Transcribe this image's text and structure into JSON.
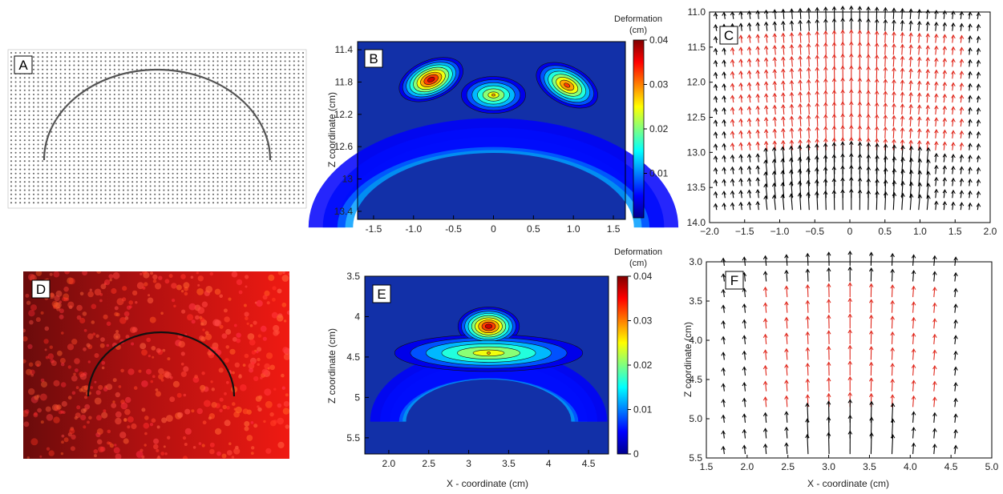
{
  "panels": {
    "A": {
      "label": "A"
    },
    "B": {
      "label": "B",
      "ylabel": "Z coordinate (cm)",
      "colorbar_title": "Deformation",
      "colorbar_units": "(cm)"
    },
    "C": {
      "label": "C"
    },
    "D": {
      "label": "D"
    },
    "E": {
      "label": "E",
      "ylabel": "Z coordinate (cm)",
      "xlabel": "X - coordinate (cm)",
      "colorbar_title": "Deformation",
      "colorbar_units": "(cm)"
    },
    "F": {
      "label": "F",
      "ylabel": "Z coordinate (cm)",
      "xlabel": "X - coordinate (cm)"
    }
  },
  "colors": {
    "contour_background": "#1230a8",
    "vector_black": "#000000",
    "vector_red": "#e0261b",
    "fluorescence_red": "#e01010"
  },
  "chart_data": [
    {
      "id": "B",
      "type": "heatmap",
      "xlim": [
        -1.7,
        1.65
      ],
      "ylim": [
        11.3,
        13.5
      ],
      "y_inverted": true,
      "xticks": [
        "-1.5",
        "-1.0",
        "-0.5",
        "0",
        "0.5",
        "1.0",
        "1.5"
      ],
      "xtick_values": [
        -1.5,
        -1.0,
        -0.5,
        0,
        0.5,
        1.0,
        1.5
      ],
      "yticks": [
        "11.4",
        "11.8",
        "12.2",
        "12.6",
        "13",
        "13.4"
      ],
      "ytick_values": [
        11.4,
        11.8,
        12.2,
        12.6,
        13.0,
        13.4
      ],
      "colorbar": {
        "min": 0,
        "max": 0.04,
        "ticks": [
          "0.04",
          "0.03",
          "0.02",
          "0.01"
        ],
        "tick_values": [
          0.04,
          0.03,
          0.02,
          0.01
        ]
      },
      "field": {
        "arc_center": [
          0,
          13.6
        ],
        "arc_radius": 1.72,
        "peaks": [
          {
            "x": -0.78,
            "z": 11.77,
            "value": 0.04
          },
          {
            "x": 0.92,
            "z": 11.84,
            "value": 0.035
          },
          {
            "x": 0.0,
            "z": 11.96,
            "value": 0.028
          }
        ]
      }
    },
    {
      "id": "C",
      "type": "scatter",
      "xlim": [
        -2.0,
        2.0
      ],
      "ylim": [
        11.0,
        14.0
      ],
      "y_inverted": true,
      "xticks": [
        "−2.0",
        "−1.5",
        "−1.0",
        "−0.5",
        "0",
        "0.5",
        "1.0",
        "1.5",
        "2.0"
      ],
      "xtick_values": [
        -2.0,
        -1.5,
        -1.0,
        -0.5,
        0,
        0.5,
        1.0,
        1.5,
        2.0
      ],
      "yticks": [
        "11.0",
        "11.5",
        "12.0",
        "12.5",
        "13.0",
        "13.5",
        "14.0"
      ],
      "ytick_values": [
        11.0,
        11.5,
        12.0,
        12.5,
        13.0,
        13.5,
        14.0
      ],
      "vector_field": {
        "x_start": -1.9,
        "x_end": 1.9,
        "x_step": 0.12,
        "z_start": 11.1,
        "z_end": 13.95,
        "z_step": 0.17,
        "red_region": {
          "radius": 1.7,
          "center_z": 13.0
        }
      }
    },
    {
      "id": "E",
      "type": "heatmap",
      "xlim": [
        1.7,
        4.75
      ],
      "ylim": [
        3.5,
        5.7
      ],
      "y_inverted": true,
      "xticks": [
        "2.0",
        "2.5",
        "3",
        "3.5",
        "4",
        "4.5"
      ],
      "xtick_values": [
        2.0,
        2.5,
        3.0,
        3.5,
        4.0,
        4.5
      ],
      "yticks": [
        "3.5",
        "4",
        "4.5",
        "5",
        "5.5"
      ],
      "ytick_values": [
        3.5,
        4.0,
        4.5,
        5.0,
        5.5
      ],
      "colorbar": {
        "min": 0,
        "max": 0.04,
        "ticks": [
          "0.04",
          "0.03",
          "0.02",
          "0.01",
          "0"
        ],
        "tick_values": [
          0.04,
          0.03,
          0.02,
          0.01,
          0
        ]
      },
      "field": {
        "arc_center": [
          3.25,
          5.3
        ],
        "arc_radius": 1.05,
        "peaks": [
          {
            "x": 3.25,
            "z": 4.12,
            "value": 0.04
          },
          {
            "x": 3.25,
            "z": 4.45,
            "value": 0.028
          }
        ]
      }
    },
    {
      "id": "F",
      "type": "scatter",
      "xlim": [
        1.5,
        5.0
      ],
      "ylim": [
        3.0,
        5.5
      ],
      "y_inverted": true,
      "xticks": [
        "1.5",
        "2.0",
        "2.5",
        "3.0",
        "3.5",
        "4.0",
        "4.5",
        "5.0"
      ],
      "xtick_values": [
        1.5,
        2.0,
        2.5,
        3.0,
        3.5,
        4.0,
        4.5,
        5.0
      ],
      "yticks": [
        "3.0",
        "3.5",
        "4.0",
        "4.5",
        "5.0",
        "5.5"
      ],
      "ytick_values": [
        3.0,
        3.5,
        4.0,
        4.5,
        5.0,
        5.5
      ],
      "vector_field": {
        "x_start": 1.72,
        "x_end": 4.8,
        "x_step": 0.257,
        "z_start": 3.05,
        "z_end": 5.45,
        "z_step": 0.2,
        "red_region": {
          "radius": 1.05,
          "center_z": 4.95
        }
      }
    }
  ]
}
